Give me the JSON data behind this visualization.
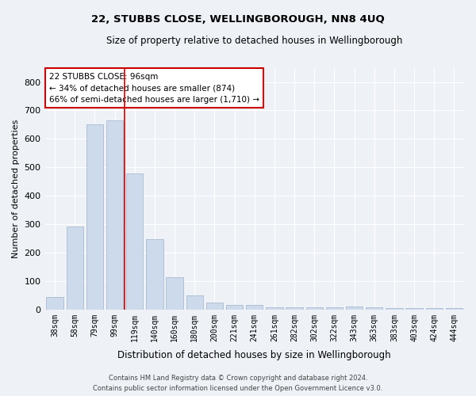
{
  "title": "22, STUBBS CLOSE, WELLINGBOROUGH, NN8 4UQ",
  "subtitle": "Size of property relative to detached houses in Wellingborough",
  "xlabel": "Distribution of detached houses by size in Wellingborough",
  "ylabel": "Number of detached properties",
  "categories": [
    "38sqm",
    "58sqm",
    "79sqm",
    "99sqm",
    "119sqm",
    "140sqm",
    "160sqm",
    "180sqm",
    "200sqm",
    "221sqm",
    "241sqm",
    "261sqm",
    "282sqm",
    "302sqm",
    "322sqm",
    "343sqm",
    "363sqm",
    "383sqm",
    "403sqm",
    "424sqm",
    "444sqm"
  ],
  "values": [
    45,
    293,
    652,
    665,
    478,
    248,
    113,
    50,
    25,
    15,
    15,
    8,
    8,
    8,
    8,
    10,
    8,
    5,
    5,
    5,
    5
  ],
  "bar_color": "#cddaeb",
  "bar_edgecolor": "#aabbd0",
  "vline_x_index": 3.5,
  "vline_color": "#cc0000",
  "annotation_text": "22 STUBBS CLOSE: 96sqm\n← 34% of detached houses are smaller (874)\n66% of semi-detached houses are larger (1,710) →",
  "annotation_box_facecolor": "#ffffff",
  "annotation_box_edgecolor": "#cc0000",
  "ylim": [
    0,
    850
  ],
  "yticks": [
    0,
    100,
    200,
    300,
    400,
    500,
    600,
    700,
    800
  ],
  "background_color": "#eef2f7",
  "plot_background_color": "#eef2f7",
  "grid_color": "#ffffff",
  "footer_line1": "Contains HM Land Registry data © Crown copyright and database right 2024.",
  "footer_line2": "Contains public sector information licensed under the Open Government Licence v3.0."
}
